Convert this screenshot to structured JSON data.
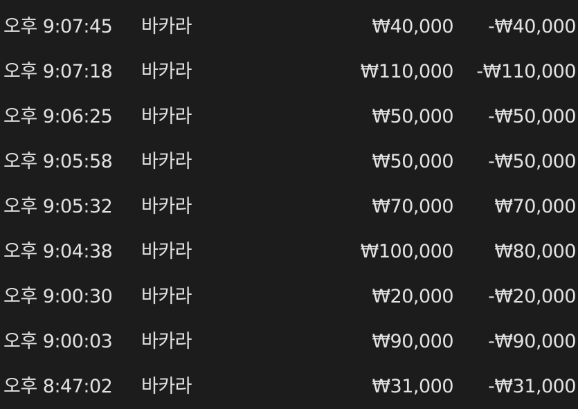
{
  "rows": [
    {
      "time": "오후 9:07:45",
      "game": "바카라",
      "bet": "₩40,000",
      "result": "-₩40,000"
    },
    {
      "time": "오후 9:07:18",
      "game": "바카라",
      "bet": "₩110,000",
      "result": "-₩110,000"
    },
    {
      "time": "오후 9:06:25",
      "game": "바카라",
      "bet": "₩50,000",
      "result": "-₩50,000"
    },
    {
      "time": "오후 9:05:58",
      "game": "바카라",
      "bet": "₩50,000",
      "result": "-₩50,000"
    },
    {
      "time": "오후 9:05:32",
      "game": "바카라",
      "bet": "₩70,000",
      "result": "₩70,000"
    },
    {
      "time": "오후 9:04:38",
      "game": "바카라",
      "bet": "₩100,000",
      "result": "₩80,000"
    },
    {
      "time": "오후 9:00:30",
      "game": "바카라",
      "bet": "₩20,000",
      "result": "-₩20,000"
    },
    {
      "time": "오후 9:00:03",
      "game": "바카라",
      "bet": "₩90,000",
      "result": "-₩90,000"
    },
    {
      "time": "오후 8:47:02",
      "game": "바카라",
      "bet": "₩31,000",
      "result": "-₩31,000"
    }
  ],
  "colors": {
    "background": "#1c1c1c",
    "text": "#e2e2e2"
  }
}
